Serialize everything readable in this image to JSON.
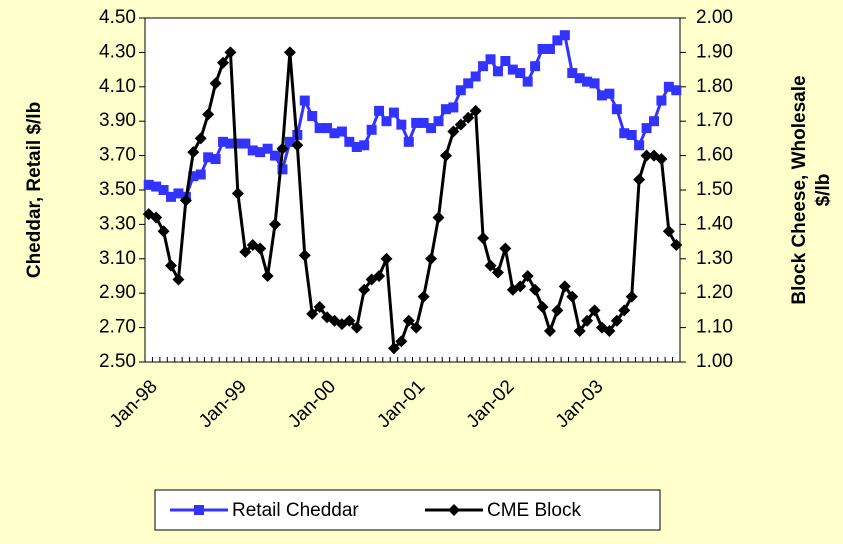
{
  "chart_data": {
    "type": "line",
    "ylabel": "Cheddar, Retail $/lb",
    "y2label": [
      "Block Cheese, Wholesale",
      "$/lb"
    ],
    "categories": [
      "Jan-98",
      null,
      null,
      null,
      null,
      null,
      null,
      null,
      null,
      null,
      null,
      null,
      "Jan-99",
      null,
      null,
      null,
      null,
      null,
      null,
      null,
      null,
      null,
      null,
      null,
      "Jan-00",
      null,
      null,
      null,
      null,
      null,
      null,
      null,
      null,
      null,
      null,
      null,
      "Jan-01",
      null,
      null,
      null,
      null,
      null,
      null,
      null,
      null,
      null,
      null,
      null,
      "Jan-02",
      null,
      null,
      null,
      null,
      null,
      null,
      null,
      null,
      null,
      null,
      null,
      "Jan-03",
      null,
      null,
      null,
      null,
      null,
      null,
      null,
      null,
      null,
      null,
      null
    ],
    "series": [
      {
        "name": "Retail Cheddar",
        "color": "#3333ff",
        "marker": "square",
        "axis": "y",
        "values": [
          3.53,
          3.52,
          3.5,
          3.46,
          3.48,
          3.46,
          3.58,
          3.59,
          3.69,
          3.68,
          3.78,
          3.77,
          3.77,
          3.77,
          3.73,
          3.72,
          3.74,
          3.7,
          3.62,
          3.78,
          3.82,
          4.02,
          3.93,
          3.86,
          3.86,
          3.83,
          3.84,
          3.78,
          3.75,
          3.76,
          3.85,
          3.96,
          3.9,
          3.95,
          3.88,
          3.78,
          3.89,
          3.89,
          3.86,
          3.9,
          3.97,
          3.98,
          4.08,
          4.12,
          4.16,
          4.22,
          4.26,
          4.19,
          4.25,
          4.2,
          4.18,
          4.13,
          4.22,
          4.32,
          4.32,
          4.37,
          4.4,
          4.18,
          4.15,
          4.13,
          4.12,
          4.05,
          4.06,
          3.97,
          3.83,
          3.82,
          3.76,
          3.86,
          3.9,
          4.02,
          4.1,
          4.08
        ]
      },
      {
        "name": "CME Block",
        "color": "#000000",
        "marker": "diamond",
        "axis": "y2",
        "values": [
          1.43,
          1.42,
          1.38,
          1.28,
          1.24,
          1.47,
          1.61,
          1.65,
          1.72,
          1.81,
          1.87,
          1.9,
          1.49,
          1.32,
          1.34,
          1.33,
          1.25,
          1.4,
          1.62,
          1.9,
          1.63,
          1.31,
          1.14,
          1.16,
          1.13,
          1.12,
          1.11,
          1.12,
          1.1,
          1.21,
          1.24,
          1.25,
          1.3,
          1.04,
          1.06,
          1.12,
          1.1,
          1.19,
          1.3,
          1.42,
          1.6,
          1.67,
          1.69,
          1.71,
          1.73,
          1.36,
          1.28,
          1.26,
          1.33,
          1.21,
          1.22,
          1.25,
          1.21,
          1.16,
          1.09,
          1.15,
          1.22,
          1.19,
          1.09,
          1.12,
          1.15,
          1.1,
          1.09,
          1.12,
          1.15,
          1.19,
          1.53,
          1.6,
          1.6,
          1.59,
          1.38,
          1.34
        ]
      }
    ],
    "ylim": [
      2.5,
      4.5
    ],
    "yticks": [
      {
        "value": 2.5,
        "label": "2.50"
      },
      {
        "value": 2.7,
        "label": "2.70"
      },
      {
        "value": 2.9,
        "label": "2.90"
      },
      {
        "value": 3.1,
        "label": "3.10"
      },
      {
        "value": 3.3,
        "label": "3.30"
      },
      {
        "value": 3.5,
        "label": "3.50"
      },
      {
        "value": 3.7,
        "label": "3.70"
      },
      {
        "value": 3.9,
        "label": "3.90"
      },
      {
        "value": 4.1,
        "label": "4.10"
      },
      {
        "value": 4.3,
        "label": "4.30"
      },
      {
        "value": 4.5,
        "label": "4.50"
      }
    ],
    "y2lim": [
      1.0,
      2.0
    ],
    "y2ticks": [
      {
        "value": 1.0,
        "label": "1.00"
      },
      {
        "value": 1.1,
        "label": "1.10"
      },
      {
        "value": 1.2,
        "label": "1.20"
      },
      {
        "value": 1.3,
        "label": "1.30"
      },
      {
        "value": 1.4,
        "label": "1.40"
      },
      {
        "value": 1.5,
        "label": "1.50"
      },
      {
        "value": 1.6,
        "label": "1.60"
      },
      {
        "value": 1.7,
        "label": "1.70"
      },
      {
        "value": 1.8,
        "label": "1.80"
      },
      {
        "value": 1.9,
        "label": "1.90"
      },
      {
        "value": 2.0,
        "label": "2.00"
      }
    ],
    "legend": "bottom",
    "grid": false
  }
}
